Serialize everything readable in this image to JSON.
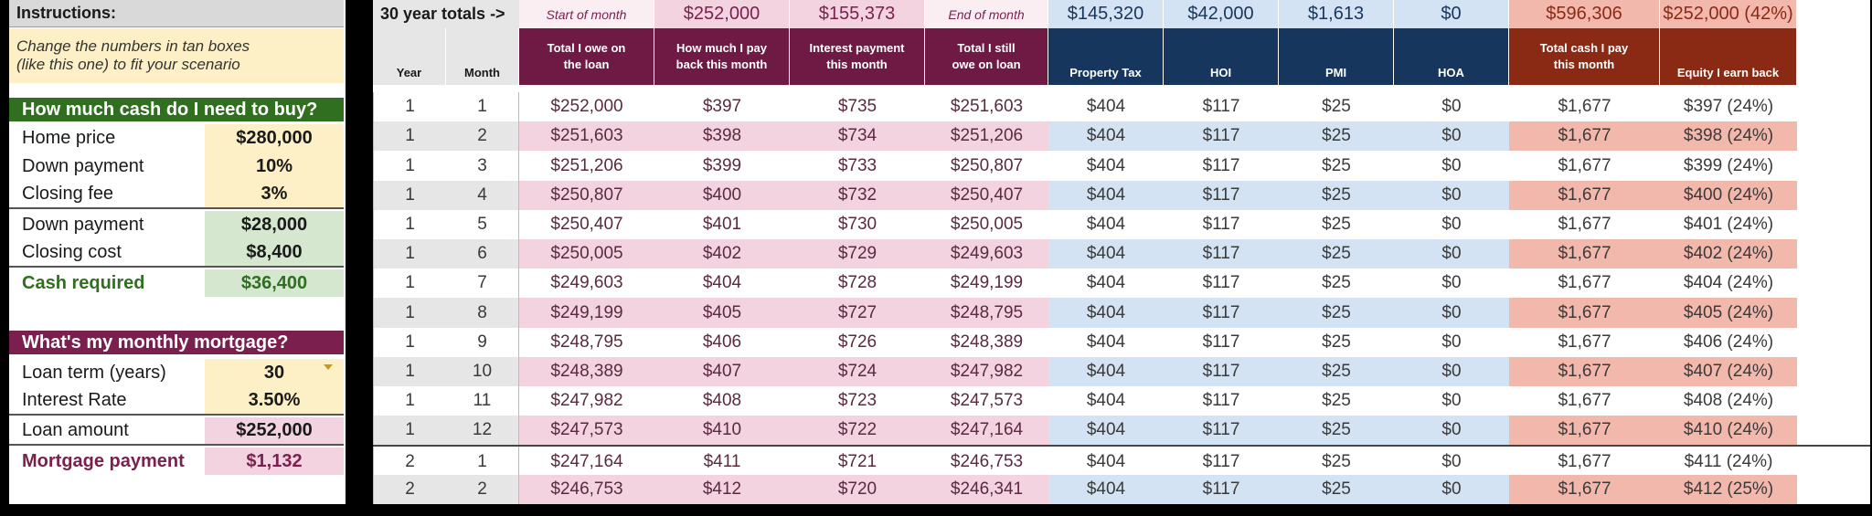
{
  "instructions": {
    "title": "Instructions:",
    "text_line1": "Change the numbers in tan boxes",
    "text_line2": "(like this one) to fit your scenario"
  },
  "cash_section": {
    "title": "How much cash do I need to buy?",
    "home_price_label": "Home price",
    "home_price": "$280,000",
    "down_payment_pct_label": "Down payment",
    "down_payment_pct": "10%",
    "closing_fee_label": "Closing fee",
    "closing_fee": "3%",
    "down_payment_amt_label": "Down payment",
    "down_payment_amt": "$28,000",
    "closing_cost_label": "Closing cost",
    "closing_cost": "$8,400",
    "cash_required_label": "Cash required",
    "cash_required": "$36,400"
  },
  "mortgage_section": {
    "title": "What's my monthly mortgage?",
    "loan_term_label": "Loan term (years)",
    "loan_term": "30",
    "interest_rate_label": "Interest Rate",
    "interest_rate": "3.50%",
    "loan_amount_label": "Loan amount",
    "loan_amount": "$252,000",
    "mortgage_payment_label": "Mortgage payment",
    "mortgage_payment": "$1,132"
  },
  "totals_row": {
    "label": "30 year totals ->",
    "start_of_month": "Start of month",
    "pay_back": "$252,000",
    "interest": "$155,373",
    "end_of_month": "End of month",
    "property_tax": "$145,320",
    "hoi": "$42,000",
    "pmi": "$1,613",
    "hoa": "$0",
    "total_cash": "$596,306",
    "equity": "$252,000 (42%)"
  },
  "headers": {
    "year": "Year",
    "month": "Month",
    "total_owe_1": "Total I owe on",
    "total_owe_2": "the loan",
    "pay_back_1": "How much I pay",
    "pay_back_2": "back this month",
    "interest_1": "Interest payment",
    "interest_2": "this month",
    "still_owe_1": "Total I still",
    "still_owe_2": "owe on loan",
    "property_tax": "Property Tax",
    "hoi": "HOI",
    "pmi": "PMI",
    "hoa": "HOA",
    "total_cash_1": "Total cash I pay",
    "total_cash_2": "this month",
    "equity": "Equity I earn back"
  },
  "rows": [
    [
      "1",
      "1",
      "$252,000",
      "$397",
      "$735",
      "$251,603",
      "$404",
      "$117",
      "$25",
      "$0",
      "$1,677",
      "$397 (24%)"
    ],
    [
      "1",
      "2",
      "$251,603",
      "$398",
      "$734",
      "$251,206",
      "$404",
      "$117",
      "$25",
      "$0",
      "$1,677",
      "$398 (24%)"
    ],
    [
      "1",
      "3",
      "$251,206",
      "$399",
      "$733",
      "$250,807",
      "$404",
      "$117",
      "$25",
      "$0",
      "$1,677",
      "$399 (24%)"
    ],
    [
      "1",
      "4",
      "$250,807",
      "$400",
      "$732",
      "$250,407",
      "$404",
      "$117",
      "$25",
      "$0",
      "$1,677",
      "$400 (24%)"
    ],
    [
      "1",
      "5",
      "$250,407",
      "$401",
      "$730",
      "$250,005",
      "$404",
      "$117",
      "$25",
      "$0",
      "$1,677",
      "$401 (24%)"
    ],
    [
      "1",
      "6",
      "$250,005",
      "$402",
      "$729",
      "$249,603",
      "$404",
      "$117",
      "$25",
      "$0",
      "$1,677",
      "$402 (24%)"
    ],
    [
      "1",
      "7",
      "$249,603",
      "$404",
      "$728",
      "$249,199",
      "$404",
      "$117",
      "$25",
      "$0",
      "$1,677",
      "$404 (24%)"
    ],
    [
      "1",
      "8",
      "$249,199",
      "$405",
      "$727",
      "$248,795",
      "$404",
      "$117",
      "$25",
      "$0",
      "$1,677",
      "$405 (24%)"
    ],
    [
      "1",
      "9",
      "$248,795",
      "$406",
      "$726",
      "$248,389",
      "$404",
      "$117",
      "$25",
      "$0",
      "$1,677",
      "$406 (24%)"
    ],
    [
      "1",
      "10",
      "$248,389",
      "$407",
      "$724",
      "$247,982",
      "$404",
      "$117",
      "$25",
      "$0",
      "$1,677",
      "$407 (24%)"
    ],
    [
      "1",
      "11",
      "$247,982",
      "$408",
      "$723",
      "$247,573",
      "$404",
      "$117",
      "$25",
      "$0",
      "$1,677",
      "$408 (24%)"
    ],
    [
      "1",
      "12",
      "$247,573",
      "$410",
      "$722",
      "$247,164",
      "$404",
      "$117",
      "$25",
      "$0",
      "$1,677",
      "$410 (24%)"
    ],
    [
      "2",
      "1",
      "$247,164",
      "$411",
      "$721",
      "$246,753",
      "$404",
      "$117",
      "$25",
      "$0",
      "$1,677",
      "$411 (24%)"
    ],
    [
      "2",
      "2",
      "$246,753",
      "$412",
      "$720",
      "$246,341",
      "$404",
      "$117",
      "$25",
      "$0",
      "$1,677",
      "$412 (25%)"
    ]
  ],
  "colors": {
    "maroon_header": "#6e1a45",
    "navy_header": "#17365d",
    "brown_header": "#8a2a14",
    "pink_stripe": "#f3d3e0",
    "blue_stripe": "#d3e3f3",
    "salmon_stripe": "#f3b8ac",
    "gray_stripe": "#e6e6e6",
    "tan": "#fdf0c6"
  }
}
